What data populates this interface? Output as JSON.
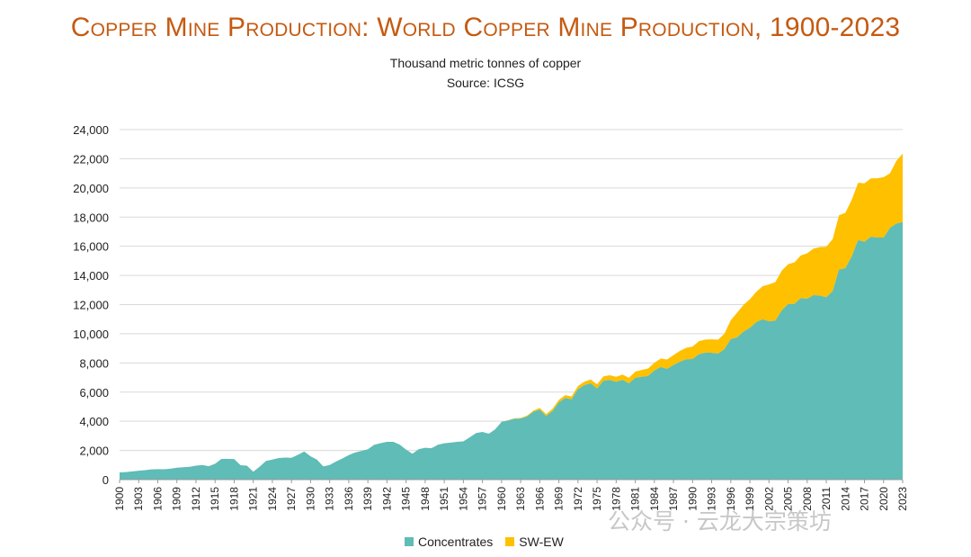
{
  "header": {
    "title": "Copper Mine Production: World Copper Mine Production, 1900-2023",
    "subtitle": "Thousand metric tonnes of copper",
    "source": "Source: ICSG"
  },
  "legend": {
    "concentrates": "Concentrates",
    "swew": "SW-EW"
  },
  "watermark": "公众号 · 云龙大宗策坊",
  "colors": {
    "title": "#c55a11",
    "concentrates": "#5fbcb6",
    "swew": "#ffc000"
  },
  "chart_data": {
    "type": "area",
    "stacked": true,
    "title": "Copper Mine Production: World Copper Mine Production, 1900-2023",
    "subtitle": "Thousand metric tonnes of copper",
    "xlim": [
      1900,
      2023
    ],
    "ylim": [
      0,
      24000
    ],
    "y_ticks": [
      "0",
      "2,000",
      "4,000",
      "6,000",
      "8,000",
      "10,000",
      "12,000",
      "14,000",
      "16,000",
      "18,000",
      "20,000",
      "22,000",
      "24,000"
    ],
    "x_ticks": [
      "1900",
      "1903",
      "1906",
      "1909",
      "1912",
      "1915",
      "1918",
      "1921",
      "1924",
      "1927",
      "1930",
      "1933",
      "1936",
      "1939",
      "1942",
      "1945",
      "1948",
      "1951",
      "1954",
      "1957",
      "1960",
      "1963",
      "1966",
      "1969",
      "1972",
      "1975",
      "1978",
      "1981",
      "1984",
      "1987",
      "1990",
      "1993",
      "1996",
      "1999",
      "2002",
      "2005",
      "2008",
      "2011",
      "2014",
      "2017",
      "2020",
      "2023"
    ],
    "grid": true,
    "legend_position": "bottom",
    "x": [
      1900,
      1901,
      1902,
      1903,
      1904,
      1905,
      1906,
      1907,
      1908,
      1909,
      1910,
      1911,
      1912,
      1913,
      1914,
      1915,
      1916,
      1917,
      1918,
      1919,
      1920,
      1921,
      1922,
      1923,
      1924,
      1925,
      1926,
      1927,
      1928,
      1929,
      1930,
      1931,
      1932,
      1933,
      1934,
      1935,
      1936,
      1937,
      1938,
      1939,
      1940,
      1941,
      1942,
      1943,
      1944,
      1945,
      1946,
      1947,
      1948,
      1949,
      1950,
      1951,
      1952,
      1953,
      1954,
      1955,
      1956,
      1957,
      1958,
      1959,
      1960,
      1961,
      1962,
      1963,
      1964,
      1965,
      1966,
      1967,
      1968,
      1969,
      1970,
      1971,
      1972,
      1973,
      1974,
      1975,
      1976,
      1977,
      1978,
      1979,
      1980,
      1981,
      1982,
      1983,
      1984,
      1985,
      1986,
      1987,
      1988,
      1989,
      1990,
      1991,
      1992,
      1993,
      1994,
      1995,
      1996,
      1997,
      1998,
      1999,
      2000,
      2001,
      2002,
      2003,
      2004,
      2005,
      2006,
      2007,
      2008,
      2009,
      2010,
      2011,
      2012,
      2013,
      2014,
      2015,
      2016,
      2017,
      2018,
      2019,
      2020,
      2021,
      2022,
      2023
    ],
    "series": [
      {
        "name": "Concentrates",
        "values": [
          495,
          520,
          560,
          610,
          650,
          700,
          720,
          710,
          750,
          820,
          850,
          880,
          960,
          1000,
          920,
          1090,
          1420,
          1420,
          1410,
          990,
          960,
          540,
          890,
          1280,
          1370,
          1480,
          1510,
          1500,
          1700,
          1930,
          1600,
          1370,
          900,
          1000,
          1240,
          1450,
          1680,
          1860,
          1970,
          2080,
          2390,
          2500,
          2590,
          2590,
          2400,
          2060,
          1770,
          2090,
          2180,
          2150,
          2390,
          2490,
          2540,
          2590,
          2620,
          2900,
          3190,
          3270,
          3150,
          3450,
          3960,
          4050,
          4170,
          4190,
          4330,
          4650,
          4800,
          4360,
          4700,
          5290,
          5600,
          5500,
          6200,
          6480,
          6600,
          6250,
          6780,
          6830,
          6700,
          6840,
          6600,
          6980,
          7050,
          7100,
          7480,
          7720,
          7600,
          7850,
          8080,
          8250,
          8270,
          8600,
          8700,
          8700,
          8640,
          8950,
          9630,
          9750,
          10150,
          10400,
          10800,
          10990,
          10850,
          10900,
          11600,
          12030,
          12050,
          12450,
          12400,
          12650,
          12620,
          12500,
          12920,
          14400,
          14500,
          15300,
          16430,
          16300,
          16650,
          16600,
          16600,
          17250,
          17550,
          17650
        ]
      },
      {
        "name": "SW-EW",
        "values": [
          0,
          0,
          0,
          0,
          0,
          0,
          0,
          0,
          0,
          0,
          0,
          0,
          0,
          0,
          0,
          0,
          0,
          0,
          0,
          0,
          0,
          0,
          0,
          0,
          0,
          0,
          0,
          0,
          0,
          0,
          0,
          0,
          0,
          0,
          0,
          0,
          0,
          0,
          0,
          0,
          0,
          0,
          0,
          0,
          0,
          0,
          0,
          0,
          0,
          0,
          0,
          0,
          0,
          0,
          0,
          0,
          0,
          0,
          0,
          0,
          0,
          20,
          30,
          40,
          60,
          80,
          110,
          130,
          150,
          180,
          190,
          200,
          220,
          240,
          260,
          280,
          300,
          330,
          350,
          360,
          380,
          420,
          470,
          510,
          530,
          580,
          640,
          690,
          740,
          790,
          850,
          890,
          900,
          920,
          950,
          1050,
          1300,
          1700,
          1830,
          1970,
          2070,
          2270,
          2530,
          2640,
          2720,
          2740,
          2840,
          2920,
          3120,
          3190,
          3320,
          3460,
          3570,
          3720,
          3790,
          3890,
          3920,
          4010,
          4000,
          4060,
          4140,
          3750,
          4300,
          4700
        ]
      }
    ]
  }
}
